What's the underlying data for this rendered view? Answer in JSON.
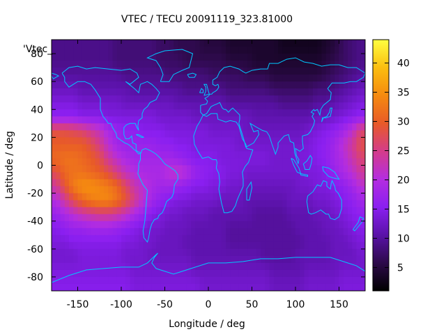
{
  "chart_data": {
    "type": "heatmap",
    "title": "VTEC / TECU 20091119_323.81000",
    "xlabel": "Longitude / deg",
    "ylabel": "Latitude / deg",
    "key_label": "'Vtec_",
    "xlim": [
      -180,
      180
    ],
    "ylim": [
      -90,
      90
    ],
    "xticks": [
      -150,
      -100,
      -50,
      0,
      50,
      100,
      150
    ],
    "yticks": [
      -80,
      -60,
      -40,
      -20,
      0,
      20,
      40,
      60,
      80
    ],
    "colorbar": {
      "min": 1,
      "max": 44,
      "ticks": [
        5,
        10,
        15,
        20,
        25,
        30,
        35,
        40
      ]
    },
    "palette": [
      "#000000",
      "#2d0a4a",
      "#5a12a8",
      "#8a1ff0",
      "#b42de0",
      "#d43c8a",
      "#e85a28",
      "#f58a10",
      "#fbbe10",
      "#ffff40"
    ],
    "grid": {
      "lon_step": 10,
      "lat_step": 10
    },
    "lat_centers": [
      85,
      75,
      65,
      55,
      45,
      35,
      25,
      15,
      5,
      -5,
      -15,
      -25,
      -35,
      -45,
      -55,
      -65,
      -75,
      -85
    ],
    "lon_centers": [
      -175,
      -165,
      -155,
      -145,
      -135,
      -125,
      -115,
      -105,
      -95,
      -85,
      -75,
      -65,
      -55,
      -45,
      -35,
      -25,
      -15,
      -5,
      5,
      15,
      25,
      35,
      45,
      55,
      65,
      75,
      85,
      95,
      105,
      115,
      125,
      135,
      145,
      155,
      165,
      175
    ],
    "values": [
      [
        9,
        9,
        9,
        9,
        9,
        9,
        9,
        8,
        8,
        8,
        8,
        8,
        7,
        7,
        6,
        6,
        6,
        5,
        5,
        5,
        4,
        4,
        4,
        4,
        4,
        4,
        3,
        3,
        3,
        3,
        3,
        4,
        5,
        7,
        8,
        9
      ],
      [
        9,
        9,
        9,
        9,
        9,
        9,
        9,
        8,
        8,
        8,
        8,
        8,
        7,
        7,
        7,
        6,
        6,
        6,
        6,
        6,
        5,
        5,
        5,
        4,
        4,
        4,
        4,
        4,
        4,
        4,
        4,
        5,
        6,
        7,
        8,
        9
      ],
      [
        10,
        10,
        10,
        10,
        10,
        10,
        10,
        10,
        9,
        9,
        9,
        9,
        9,
        8,
        8,
        8,
        8,
        8,
        7,
        7,
        7,
        7,
        6,
        6,
        6,
        5,
        5,
        5,
        5,
        5,
        5,
        6,
        7,
        8,
        9,
        10
      ],
      [
        12,
        12,
        12,
        11,
        11,
        11,
        11,
        11,
        11,
        10,
        10,
        10,
        10,
        10,
        10,
        9,
        9,
        9,
        9,
        9,
        8,
        8,
        8,
        8,
        8,
        7,
        7,
        7,
        7,
        7,
        8,
        8,
        9,
        10,
        11,
        12
      ],
      [
        14,
        14,
        14,
        13,
        13,
        13,
        13,
        13,
        12,
        12,
        12,
        12,
        12,
        12,
        11,
        11,
        11,
        11,
        11,
        11,
        10,
        10,
        10,
        10,
        10,
        10,
        9,
        9,
        9,
        9,
        10,
        10,
        11,
        12,
        13,
        14
      ],
      [
        16,
        16,
        16,
        15,
        15,
        15,
        14,
        14,
        14,
        14,
        14,
        14,
        13,
        13,
        13,
        13,
        12,
        12,
        12,
        12,
        12,
        12,
        12,
        11,
        11,
        11,
        11,
        11,
        11,
        11,
        12,
        12,
        13,
        14,
        15,
        16
      ],
      [
        28,
        28,
        27,
        26,
        24,
        22,
        19,
        17,
        16,
        16,
        15,
        15,
        15,
        14,
        14,
        14,
        14,
        14,
        13,
        13,
        13,
        13,
        12,
        12,
        12,
        12,
        12,
        12,
        12,
        13,
        14,
        15,
        16,
        18,
        21,
        26
      ],
      [
        30,
        30,
        30,
        30,
        28,
        25,
        21,
        18,
        17,
        17,
        17,
        17,
        16,
        16,
        15,
        15,
        14,
        14,
        14,
        14,
        14,
        13,
        13,
        13,
        13,
        13,
        13,
        13,
        13,
        14,
        15,
        16,
        18,
        21,
        24,
        28
      ],
      [
        31,
        32,
        32,
        31,
        30,
        28,
        24,
        21,
        19,
        18,
        18,
        18,
        18,
        18,
        17,
        16,
        15,
        15,
        15,
        14,
        14,
        14,
        14,
        14,
        14,
        13,
        13,
        13,
        14,
        14,
        15,
        16,
        18,
        20,
        23,
        26
      ],
      [
        28,
        31,
        32,
        32,
        31,
        30,
        28,
        25,
        22,
        20,
        19,
        19,
        19,
        21,
        22,
        20,
        17,
        16,
        15,
        15,
        14,
        14,
        13,
        13,
        13,
        13,
        13,
        13,
        13,
        14,
        14,
        15,
        17,
        19,
        21,
        24
      ],
      [
        24,
        29,
        33,
        35,
        35,
        34,
        33,
        31,
        27,
        23,
        21,
        19,
        18,
        18,
        17,
        16,
        15,
        15,
        14,
        14,
        13,
        13,
        12,
        12,
        12,
        12,
        12,
        12,
        13,
        13,
        14,
        14,
        15,
        16,
        18,
        21
      ],
      [
        20,
        24,
        28,
        31,
        33,
        34,
        34,
        32,
        29,
        25,
        21,
        18,
        16,
        15,
        14,
        14,
        13,
        13,
        13,
        12,
        12,
        12,
        11,
        11,
        11,
        11,
        11,
        12,
        12,
        12,
        13,
        13,
        14,
        15,
        16,
        18
      ],
      [
        17,
        19,
        21,
        23,
        24,
        25,
        25,
        24,
        22,
        19,
        17,
        15,
        14,
        13,
        13,
        12,
        12,
        12,
        11,
        11,
        11,
        11,
        11,
        10,
        10,
        10,
        10,
        11,
        11,
        11,
        12,
        12,
        13,
        14,
        15,
        16
      ],
      [
        15,
        16,
        17,
        17,
        18,
        18,
        18,
        17,
        16,
        15,
        14,
        13,
        13,
        12,
        12,
        12,
        11,
        11,
        11,
        11,
        10,
        10,
        10,
        10,
        10,
        10,
        10,
        10,
        11,
        11,
        11,
        12,
        12,
        13,
        14,
        15
      ],
      [
        14,
        14,
        15,
        15,
        15,
        15,
        15,
        15,
        14,
        14,
        13,
        13,
        12,
        12,
        12,
        11,
        11,
        11,
        11,
        11,
        10,
        10,
        10,
        10,
        10,
        10,
        10,
        10,
        10,
        11,
        11,
        11,
        12,
        12,
        13,
        14
      ],
      [
        13,
        13,
        13,
        14,
        14,
        14,
        14,
        14,
        13,
        13,
        13,
        12,
        12,
        12,
        12,
        12,
        11,
        11,
        11,
        11,
        11,
        11,
        11,
        11,
        10,
        10,
        10,
        10,
        11,
        11,
        11,
        11,
        12,
        12,
        12,
        13
      ],
      [
        14,
        14,
        14,
        14,
        14,
        14,
        14,
        14,
        14,
        13,
        13,
        13,
        13,
        13,
        13,
        13,
        12,
        12,
        12,
        12,
        12,
        12,
        12,
        12,
        12,
        11,
        11,
        11,
        11,
        12,
        12,
        12,
        12,
        13,
        13,
        13
      ],
      [
        15,
        15,
        15,
        15,
        15,
        15,
        15,
        15,
        15,
        14,
        14,
        14,
        14,
        14,
        14,
        14,
        14,
        13,
        13,
        13,
        13,
        13,
        13,
        13,
        13,
        12,
        12,
        12,
        12,
        13,
        13,
        13,
        13,
        14,
        14,
        14
      ]
    ]
  }
}
